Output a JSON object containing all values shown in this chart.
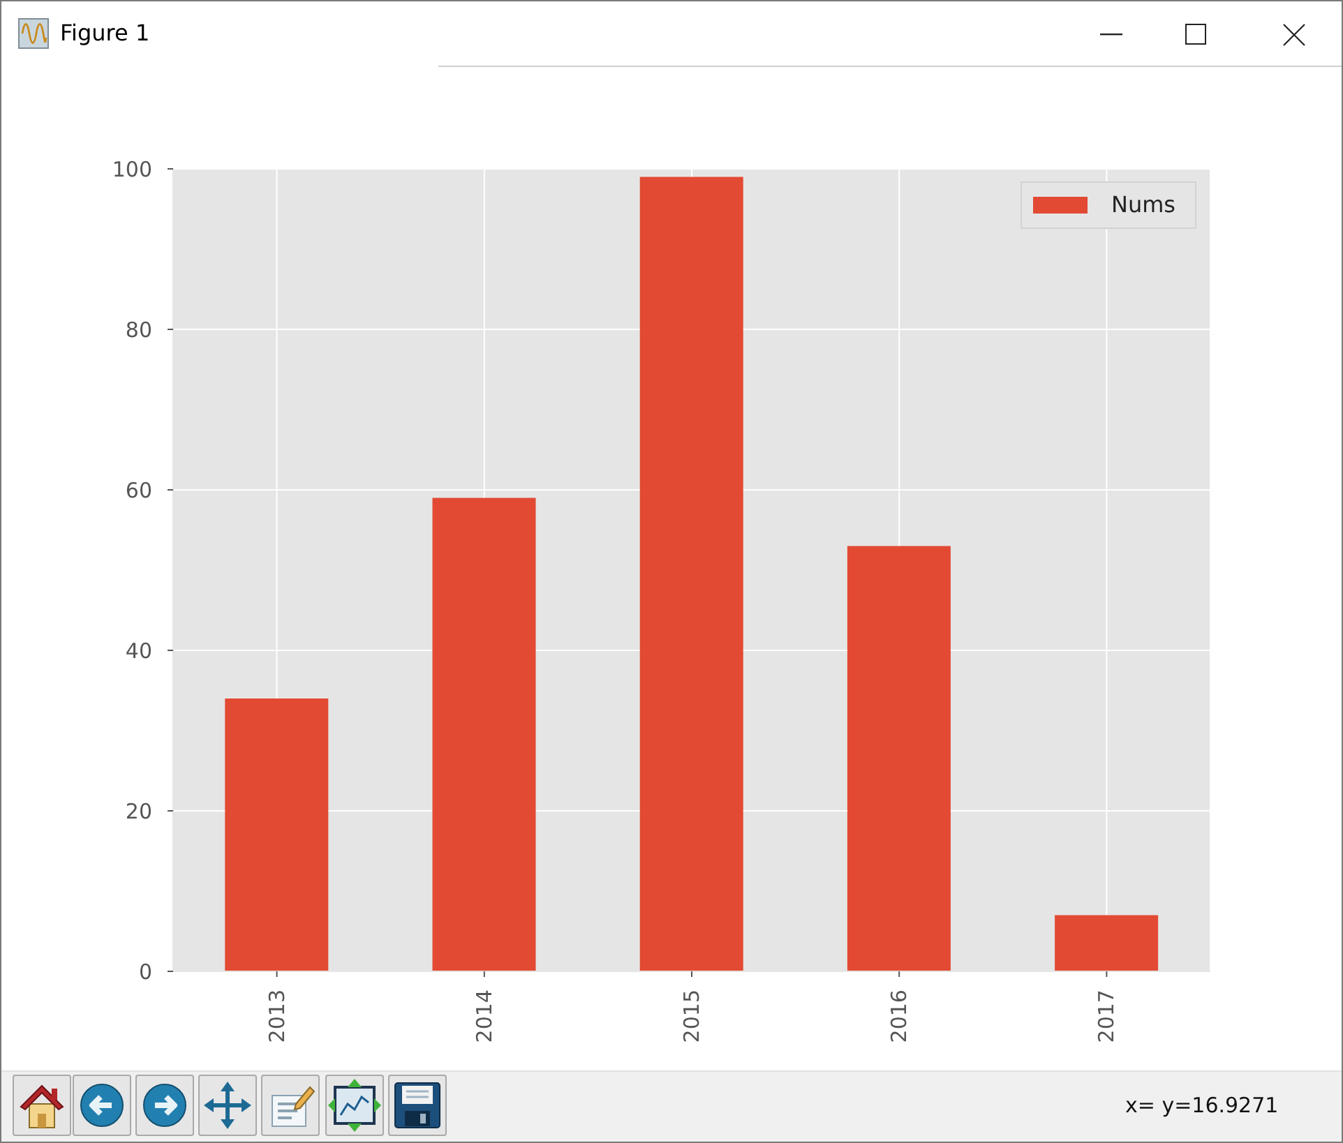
{
  "chart_data": {
    "type": "bar",
    "title": "Figure 1",
    "categories": [
      "2013",
      "2014",
      "2015",
      "2016",
      "2017"
    ],
    "series": [
      {
        "name": "Nums",
        "color": "#e24a33",
        "values": [
          34,
          59,
          99,
          53,
          7
        ]
      }
    ],
    "ylim": [
      0,
      100
    ],
    "yticks": [
      0,
      20,
      40,
      60,
      80,
      100
    ],
    "grid": true,
    "legend": "top right",
    "annotations": [
      "x= y=16.9271"
    ]
  }
}
